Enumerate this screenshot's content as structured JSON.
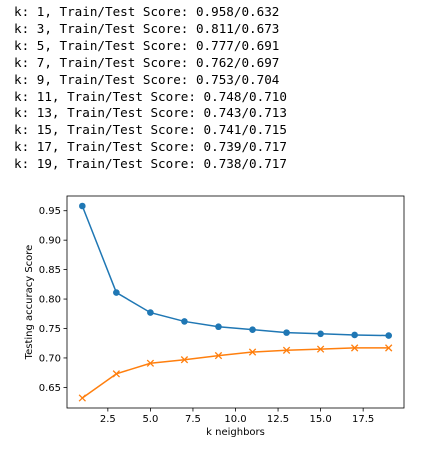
{
  "console": {
    "lines": [
      "k: 1, Train/Test Score: 0.958/0.632",
      "k: 3, Train/Test Score: 0.811/0.673",
      "k: 5, Train/Test Score: 0.777/0.691",
      "k: 7, Train/Test Score: 0.762/0.697",
      "k: 9, Train/Test Score: 0.753/0.704",
      "k: 11, Train/Test Score: 0.748/0.710",
      "k: 13, Train/Test Score: 0.743/0.713",
      "k: 15, Train/Test Score: 0.741/0.715",
      "k: 17, Train/Test Score: 0.739/0.717",
      "k: 19, Train/Test Score: 0.738/0.717"
    ]
  },
  "chart_data": {
    "type": "line",
    "xlabel": "k neighbors",
    "ylabel": "Testing accuracy Score",
    "x": [
      1,
      3,
      5,
      7,
      9,
      11,
      13,
      15,
      17,
      19
    ],
    "xlim": [
      0.1,
      19.9
    ],
    "ylim": [
      0.615,
      0.975
    ],
    "xticks": [
      "2.5",
      "5.0",
      "7.5",
      "10.0",
      "12.5",
      "15.0",
      "17.5"
    ],
    "yticks": [
      "0.65",
      "0.70",
      "0.75",
      "0.80",
      "0.85",
      "0.90",
      "0.95"
    ],
    "grid": false,
    "series": [
      {
        "values": [
          0.958,
          0.811,
          0.777,
          0.762,
          0.753,
          0.748,
          0.743,
          0.741,
          0.739,
          0.738
        ],
        "color": "#1f77b4",
        "marker": "circle"
      },
      {
        "values": [
          0.632,
          0.673,
          0.691,
          0.697,
          0.704,
          0.71,
          0.713,
          0.715,
          0.717,
          0.717
        ],
        "color": "#ff7f0e",
        "marker": "x"
      }
    ]
  }
}
